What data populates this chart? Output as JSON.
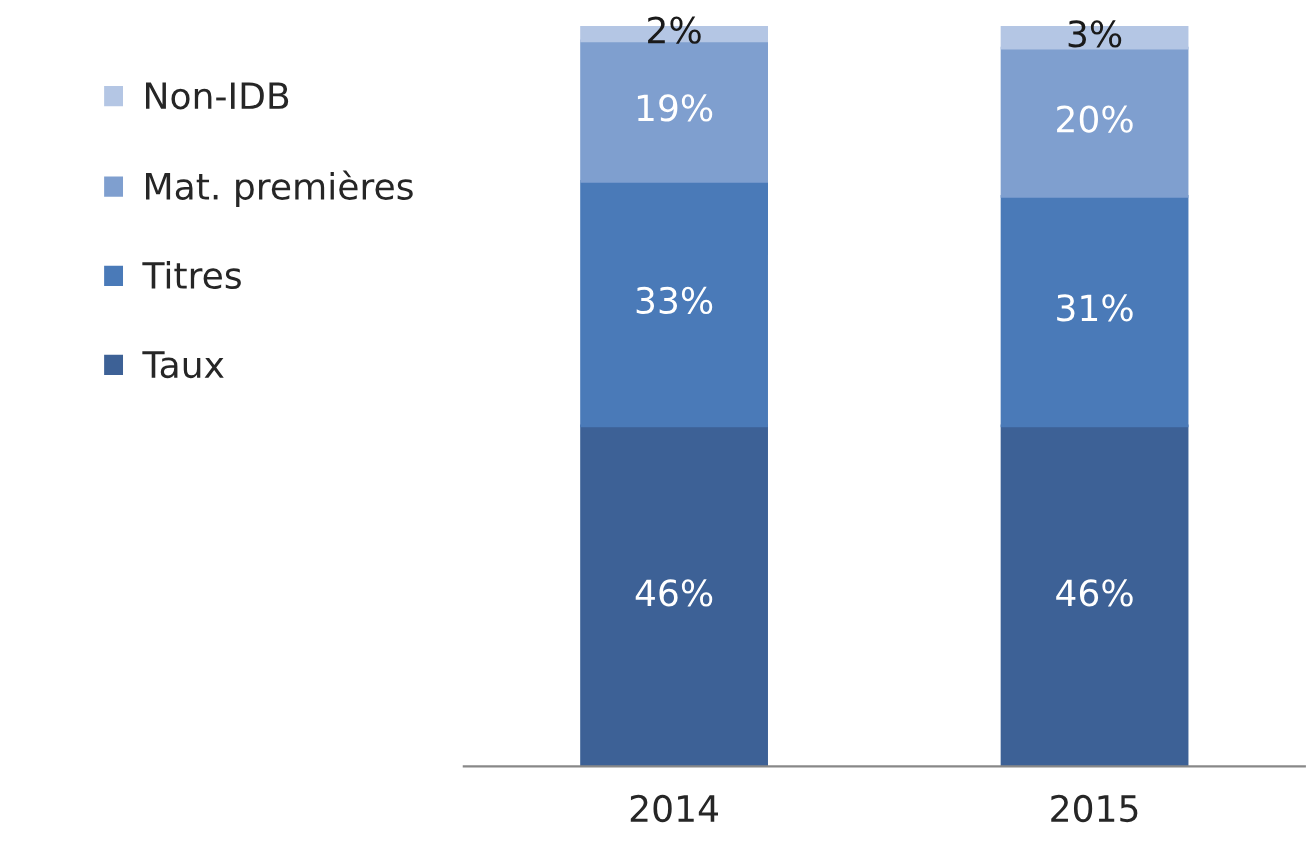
{
  "chart_data": {
    "type": "bar",
    "stacked": true,
    "categories": [
      "2014",
      "2015"
    ],
    "series": [
      {
        "name": "Taux",
        "color": "#3d6196",
        "values": [
          46,
          46
        ],
        "value_labels": [
          "46%",
          "46%"
        ]
      },
      {
        "name": "Titres",
        "color": "#4a7ab8",
        "values": [
          33,
          31
        ],
        "value_labels": [
          "33%",
          "31%"
        ]
      },
      {
        "name": "Mat. premières",
        "color": "#7f9fcf",
        "values": [
          19,
          20
        ],
        "value_labels": [
          "19%",
          "20%"
        ]
      },
      {
        "name": "Non-IDB",
        "color": "#b4c6e4",
        "values": [
          2,
          3
        ],
        "value_labels": [
          "2%",
          "3%"
        ]
      }
    ],
    "ylim": [
      0,
      100
    ],
    "tick_labels": "x",
    "legend": "left"
  }
}
